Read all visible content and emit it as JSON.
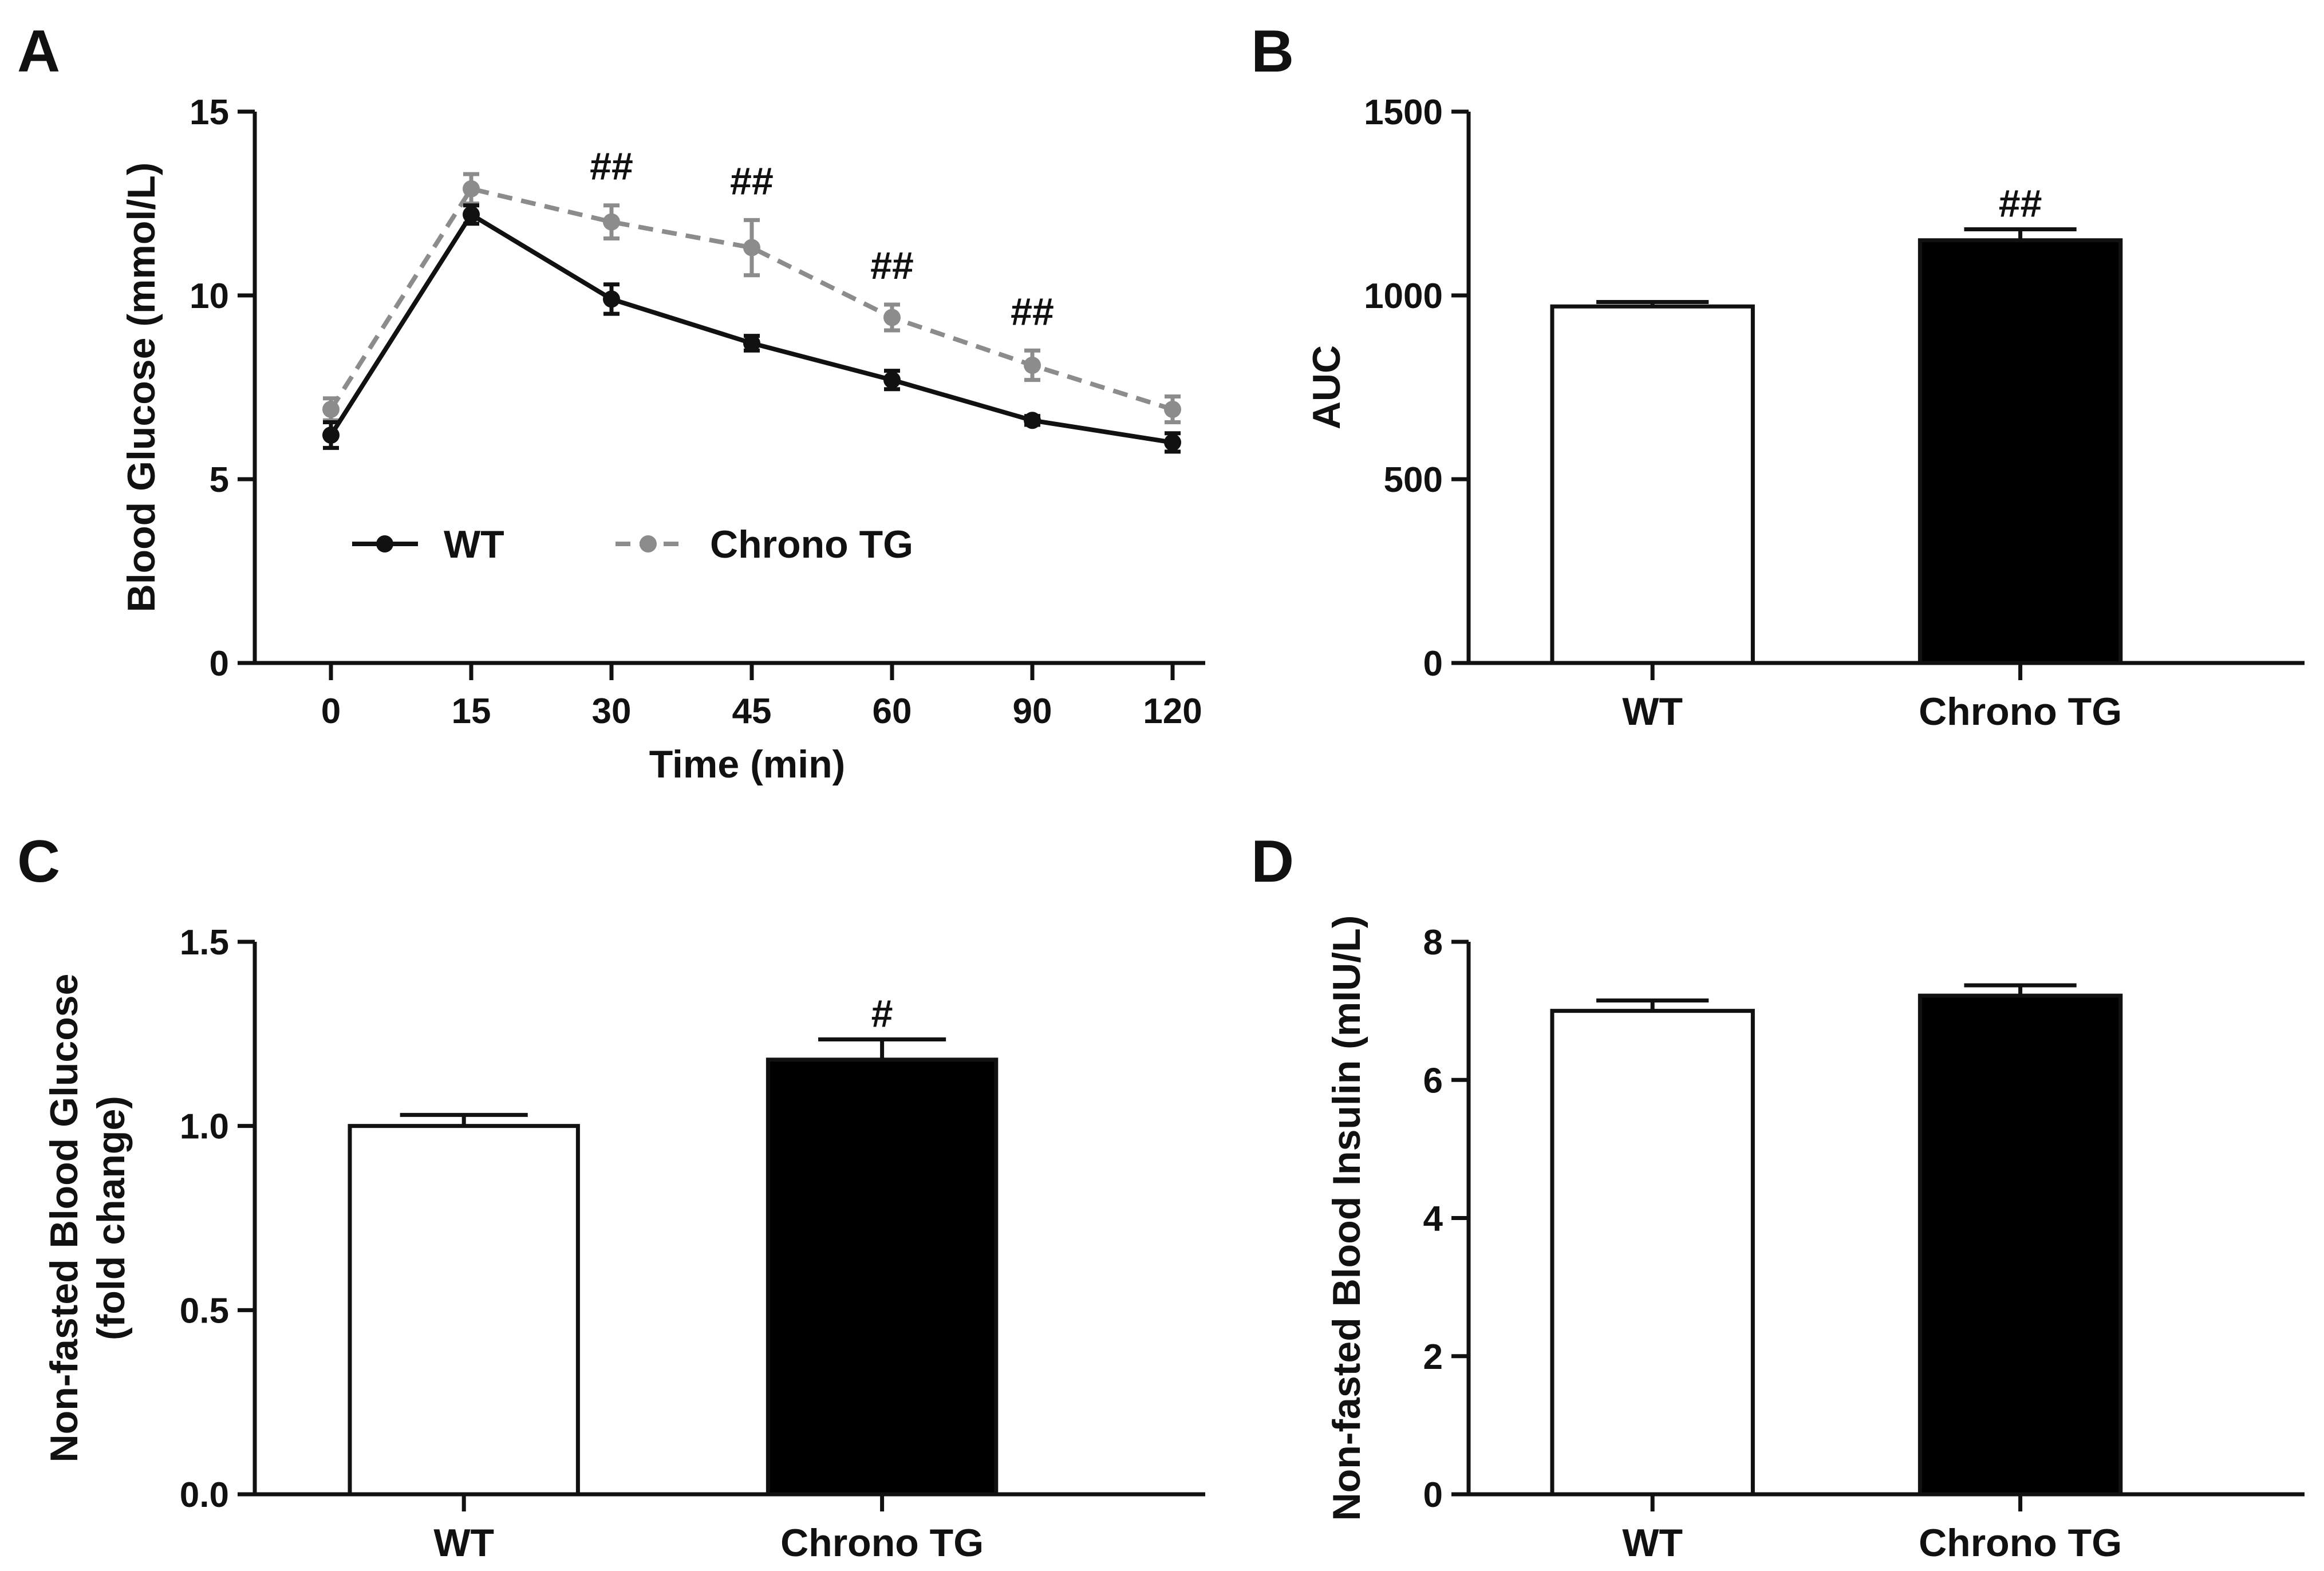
{
  "chart_data": [
    {
      "panel": "A",
      "type": "line",
      "xlabel": "Time (min)",
      "ylabel": "Blood Glucose (mmol/L)",
      "categories": [
        "0",
        "15",
        "30",
        "45",
        "60",
        "90",
        "120"
      ],
      "ylim": [
        0,
        15
      ],
      "yticks": [
        0,
        5,
        10,
        15
      ],
      "grid": false,
      "legend": "bottom-left",
      "series": [
        {
          "name": "WT",
          "values": [
            6.2,
            12.2,
            9.9,
            8.7,
            7.7,
            6.6,
            6.0
          ],
          "errors": [
            0.35,
            0.25,
            0.4,
            0.2,
            0.25,
            0.12,
            0.25
          ],
          "color": "#111111",
          "style": "solid"
        },
        {
          "name": "Chrono TG",
          "values": [
            6.9,
            12.9,
            12.0,
            11.3,
            9.4,
            8.1,
            6.9
          ],
          "errors": [
            0.3,
            0.4,
            0.45,
            0.75,
            0.35,
            0.4,
            0.35
          ],
          "color": "#8c8c8c",
          "style": "dashed"
        }
      ],
      "annotations": [
        {
          "x": "30",
          "text": "##"
        },
        {
          "x": "45",
          "text": "##"
        },
        {
          "x": "60",
          "text": "##"
        },
        {
          "x": "90",
          "text": "##"
        }
      ]
    },
    {
      "panel": "B",
      "type": "bar",
      "ylabel": "AUC",
      "categories": [
        "WT",
        "Chrono TG"
      ],
      "values": [
        970,
        1150
      ],
      "errors": [
        12,
        30
      ],
      "fills": [
        "#ffffff",
        "#000000"
      ],
      "ylim": [
        0,
        1500
      ],
      "yticks": [
        0,
        500,
        1000,
        1500
      ],
      "annotations": [
        {
          "category": "Chrono TG",
          "text": "##"
        }
      ]
    },
    {
      "panel": "C",
      "type": "bar",
      "ylabel_lines": [
        "Non-fasted Blood  Glucose",
        "(fold change)"
      ],
      "categories": [
        "WT",
        "Chrono TG"
      ],
      "values": [
        1.0,
        1.18
      ],
      "errors": [
        0.03,
        0.055
      ],
      "fills": [
        "#ffffff",
        "#000000"
      ],
      "ylim": [
        0,
        1.5
      ],
      "yticks": [
        "0.0",
        "0.5",
        "1.0",
        "1.5"
      ],
      "annotations": [
        {
          "category": "Chrono TG",
          "text": "#"
        }
      ]
    },
    {
      "panel": "D",
      "type": "bar",
      "ylabel": "Non-fasted Blood Insulin (mIU/L)",
      "categories": [
        "WT",
        "Chrono TG"
      ],
      "values": [
        7.0,
        7.22
      ],
      "errors": [
        0.15,
        0.15
      ],
      "fills": [
        "#ffffff",
        "#000000"
      ],
      "ylim": [
        0,
        8
      ],
      "yticks": [
        0,
        2,
        4,
        6,
        8
      ],
      "annotations": []
    }
  ]
}
